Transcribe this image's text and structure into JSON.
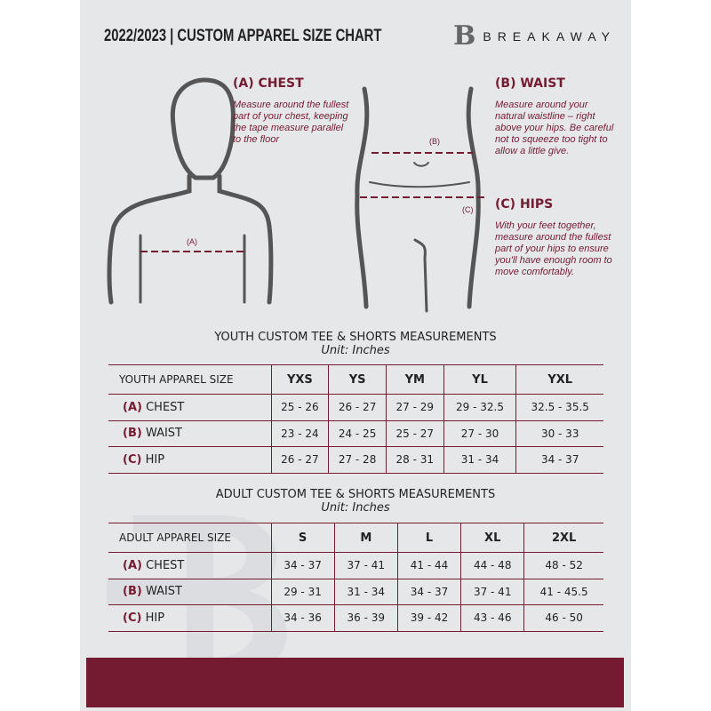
{
  "header": {
    "title": "2022/2023 | CUSTOM APPAREL SIZE CHART",
    "logo_mark": "B",
    "brand": "BREAKAWAY"
  },
  "measures": {
    "chest": {
      "title": "(A) CHEST",
      "desc": "Measure around the fullest part of your chest, keeping the tape measure parallel to the floor",
      "marker": "(A)"
    },
    "waist": {
      "title": "(B) WAIST",
      "desc": "Measure around your natural waistline – right above your hips. Be careful not to squeeze too tight to allow a little give.",
      "marker": "(B)"
    },
    "hips": {
      "title": "(C) HIPS",
      "desc": "With your feet together, measure around the fullest part of your hips to ensure you'll have enough room to move comfortably.",
      "marker": "(C)"
    }
  },
  "youth": {
    "title": "YOUTH CUSTOM TEE & SHORTS MEASUREMENTS",
    "unit": "Unit: Inches",
    "header": [
      "YOUTH APPAREL SIZE",
      "YXS",
      "YS",
      "YM",
      "YL",
      "YXL"
    ],
    "rows": [
      {
        "key": "(A)",
        "label": "CHEST",
        "values": [
          "25 - 26",
          "26 - 27",
          "27 - 29",
          "29 - 32.5",
          "32.5 - 35.5"
        ]
      },
      {
        "key": "(B)",
        "label": "WAIST",
        "values": [
          "23 - 24",
          "24 - 25",
          "25 - 27",
          "27 - 30",
          "30 - 33"
        ]
      },
      {
        "key": "(C)",
        "label": "HIP",
        "values": [
          "26 - 27",
          "27 - 28",
          "28 - 31",
          "31 - 34",
          "34 - 37"
        ]
      }
    ]
  },
  "adult": {
    "title": "ADULT CUSTOM TEE & SHORTS MEASUREMENTS",
    "unit": "Unit: Inches",
    "header": [
      "ADULT APPAREL SIZE",
      "S",
      "M",
      "L",
      "XL",
      "2XL"
    ],
    "rows": [
      {
        "key": "(A)",
        "label": "CHEST",
        "values": [
          "34 - 37",
          "37 - 41",
          "41 - 44",
          "44 - 48",
          "48 - 52"
        ]
      },
      {
        "key": "(B)",
        "label": "WAIST",
        "values": [
          "29 - 31",
          "31 - 34",
          "34 - 37",
          "37 - 41",
          "41 - 45.5"
        ]
      },
      {
        "key": "(C)",
        "label": "HIP",
        "values": [
          "34 - 36",
          "36 - 39",
          "39 - 42",
          "43 - 46",
          "46 - 50"
        ]
      }
    ]
  },
  "colors": {
    "accent": "#741b32",
    "background": "#e6e7e9"
  }
}
